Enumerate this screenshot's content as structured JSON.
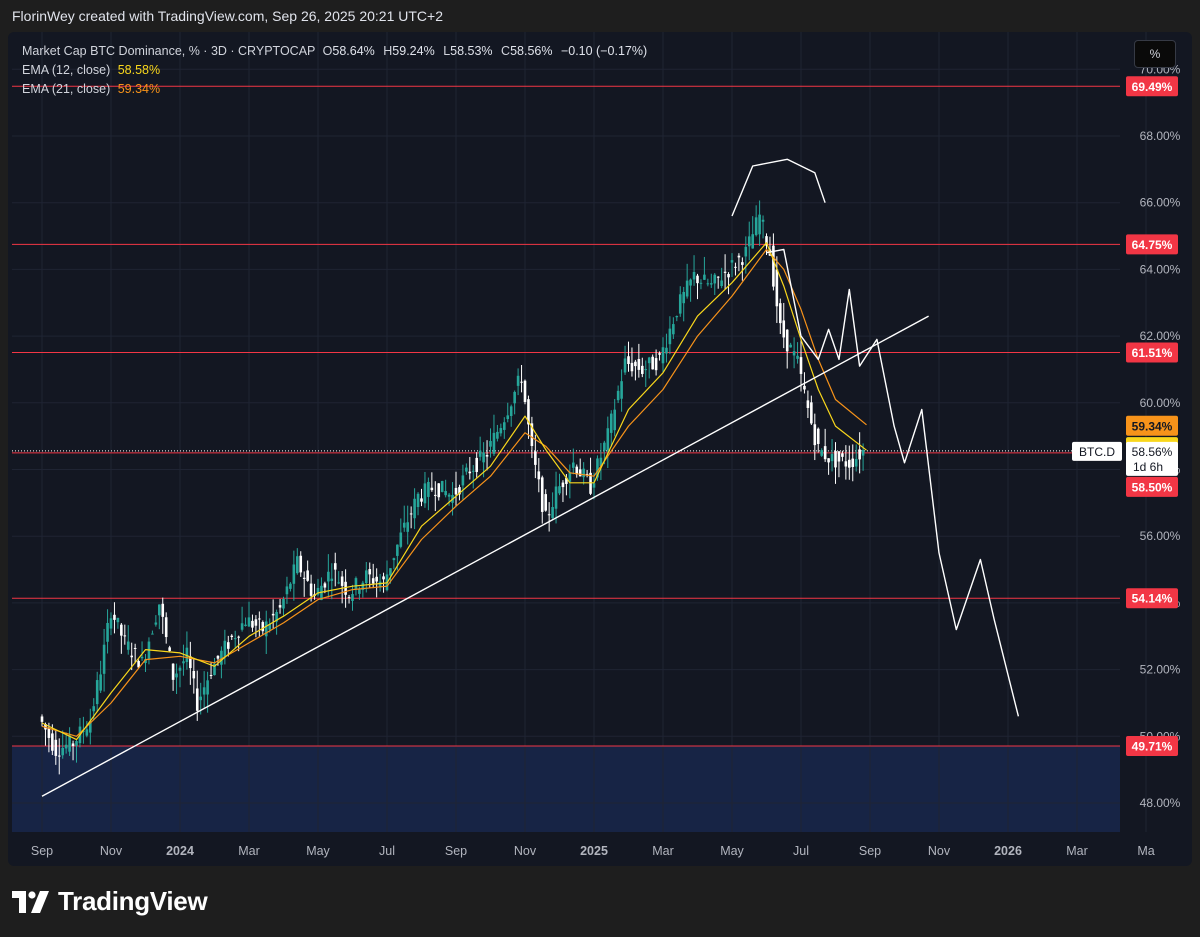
{
  "credit": "FlorinWey created with TradingView.com, Sep 26, 2025 20:21 UTC+2",
  "legend": {
    "symbol": "Market Cap BTC Dominance, % · 3D · CRYPTOCAP",
    "o_label": "O",
    "o_value": "58.64%",
    "h_label": "H",
    "h_value": "59.24%",
    "l_label": "L",
    "l_value": "58.53%",
    "c_label": "C",
    "c_value": "58.56%",
    "change": "−0.10 (−0.17%)",
    "ema12_label": "EMA (12, close)",
    "ema12_value": "58.58%",
    "ema21_label": "EMA (21, close)",
    "ema21_value": "59.34%"
  },
  "scale_button": "%",
  "logo_text": "TradingView",
  "colors": {
    "background": "#131722",
    "candle_up": "#26a69a",
    "candle_down": "#ffffff",
    "ema12": "#f9d71c",
    "ema21": "#f7931a",
    "level_line": "#f23645",
    "drawing": "#ffffff"
  },
  "chart_data": {
    "type": "candlestick",
    "timeframe": "3D",
    "x_ticks": [
      "Sep",
      "Nov",
      "2024",
      "Mar",
      "May",
      "Jul",
      "Sep",
      "Nov",
      "2025",
      "Mar",
      "May",
      "Jul",
      "Sep",
      "Nov",
      "2026",
      "Mar",
      "Ma"
    ],
    "y_ticks": [
      "48.00%",
      "50.00%",
      "52.00%",
      "54.00%",
      "56.00%",
      "58.00%",
      "60.00%",
      "62.00%",
      "64.00%",
      "66.00%",
      "68.00%",
      "70.00%"
    ],
    "ylim": [
      47.3,
      70.6
    ],
    "horizontal_levels": [
      69.49,
      64.75,
      61.51,
      58.5,
      54.14,
      49.71
    ],
    "level_labels": [
      "69.49%",
      "64.75%",
      "61.51%",
      "58.50%",
      "54.14%",
      "49.71%"
    ],
    "last_price": {
      "symbol": "BTC.D",
      "value": "58.56%",
      "countdown": "1d 6h"
    },
    "ema_labels": {
      "ema21": "59.34%",
      "ema12": "58.58%"
    },
    "price_path": [
      {
        "month": 0.0,
        "value": 50.6
      },
      {
        "month": 0.5,
        "value": 49.6
      },
      {
        "month": 1.0,
        "value": 49.8
      },
      {
        "month": 1.5,
        "value": 50.5
      },
      {
        "month": 1.8,
        "value": 52.0
      },
      {
        "month": 2.1,
        "value": 53.8
      },
      {
        "month": 2.5,
        "value": 52.8
      },
      {
        "month": 3.0,
        "value": 52.2
      },
      {
        "month": 3.5,
        "value": 54.0
      },
      {
        "month": 3.9,
        "value": 51.8
      },
      {
        "month": 4.3,
        "value": 52.4
      },
      {
        "month": 4.6,
        "value": 51.0
      },
      {
        "month": 5.0,
        "value": 52.0
      },
      {
        "month": 5.5,
        "value": 52.8
      },
      {
        "month": 6.0,
        "value": 53.5
      },
      {
        "month": 6.5,
        "value": 53.2
      },
      {
        "month": 7.0,
        "value": 53.8
      },
      {
        "month": 7.5,
        "value": 55.2
      },
      {
        "month": 8.0,
        "value": 54.2
      },
      {
        "month": 8.5,
        "value": 55.0
      },
      {
        "month": 9.0,
        "value": 54.3
      },
      {
        "month": 9.5,
        "value": 54.8
      },
      {
        "month": 10.0,
        "value": 54.6
      },
      {
        "month": 10.5,
        "value": 56.0
      },
      {
        "month": 11.0,
        "value": 57.2
      },
      {
        "month": 11.5,
        "value": 57.5
      },
      {
        "month": 12.0,
        "value": 57.2
      },
      {
        "month": 12.5,
        "value": 58.0
      },
      {
        "month": 13.0,
        "value": 58.5
      },
      {
        "month": 13.5,
        "value": 59.6
      },
      {
        "month": 14.0,
        "value": 60.8
      },
      {
        "month": 14.3,
        "value": 58.5
      },
      {
        "month": 14.7,
        "value": 56.5
      },
      {
        "month": 15.0,
        "value": 57.3
      },
      {
        "month": 15.5,
        "value": 58.2
      },
      {
        "month": 16.0,
        "value": 57.5
      },
      {
        "month": 16.5,
        "value": 59.0
      },
      {
        "month": 17.0,
        "value": 61.2
      },
      {
        "month": 17.5,
        "value": 61.0
      },
      {
        "month": 18.0,
        "value": 61.3
      },
      {
        "month": 18.5,
        "value": 62.8
      },
      {
        "month": 19.0,
        "value": 63.8
      },
      {
        "month": 19.5,
        "value": 63.5
      },
      {
        "month": 20.0,
        "value": 64.0
      },
      {
        "month": 20.5,
        "value": 64.5
      },
      {
        "month": 20.9,
        "value": 65.6
      },
      {
        "month": 21.2,
        "value": 64.5
      },
      {
        "month": 21.5,
        "value": 62.2
      },
      {
        "month": 22.0,
        "value": 61.2
      },
      {
        "month": 22.3,
        "value": 59.8
      },
      {
        "month": 22.6,
        "value": 58.6
      },
      {
        "month": 23.0,
        "value": 58.3
      },
      {
        "month": 23.5,
        "value": 58.2
      },
      {
        "month": 23.9,
        "value": 58.56
      }
    ],
    "ema12_path": [
      {
        "month": 0.0,
        "value": 50.4
      },
      {
        "month": 1.0,
        "value": 49.9
      },
      {
        "month": 2.0,
        "value": 51.3
      },
      {
        "month": 3.0,
        "value": 52.6
      },
      {
        "month": 4.0,
        "value": 52.5
      },
      {
        "month": 5.0,
        "value": 52.1
      },
      {
        "month": 6.0,
        "value": 53.0
      },
      {
        "month": 7.0,
        "value": 53.6
      },
      {
        "month": 8.0,
        "value": 54.3
      },
      {
        "month": 9.0,
        "value": 54.5
      },
      {
        "month": 10.0,
        "value": 54.6
      },
      {
        "month": 11.0,
        "value": 56.3
      },
      {
        "month": 12.0,
        "value": 57.2
      },
      {
        "month": 13.0,
        "value": 58.1
      },
      {
        "month": 14.0,
        "value": 59.6
      },
      {
        "month": 14.6,
        "value": 58.6
      },
      {
        "month": 15.3,
        "value": 57.6
      },
      {
        "month": 16.0,
        "value": 57.6
      },
      {
        "month": 17.0,
        "value": 59.8
      },
      {
        "month": 18.0,
        "value": 60.9
      },
      {
        "month": 19.0,
        "value": 62.6
      },
      {
        "month": 20.0,
        "value": 63.6
      },
      {
        "month": 21.0,
        "value": 64.8
      },
      {
        "month": 21.5,
        "value": 63.5
      },
      {
        "month": 22.0,
        "value": 61.9
      },
      {
        "month": 22.5,
        "value": 60.4
      },
      {
        "month": 23.0,
        "value": 59.3
      },
      {
        "month": 23.9,
        "value": 58.58
      }
    ],
    "ema21_path": [
      {
        "month": 0.0,
        "value": 50.3
      },
      {
        "month": 1.0,
        "value": 50.0
      },
      {
        "month": 2.0,
        "value": 51.0
      },
      {
        "month": 3.0,
        "value": 52.3
      },
      {
        "month": 4.0,
        "value": 52.4
      },
      {
        "month": 5.0,
        "value": 52.2
      },
      {
        "month": 6.0,
        "value": 52.8
      },
      {
        "month": 7.0,
        "value": 53.4
      },
      {
        "month": 8.0,
        "value": 54.1
      },
      {
        "month": 9.0,
        "value": 54.4
      },
      {
        "month": 10.0,
        "value": 54.5
      },
      {
        "month": 11.0,
        "value": 55.9
      },
      {
        "month": 12.0,
        "value": 56.9
      },
      {
        "month": 13.0,
        "value": 57.8
      },
      {
        "month": 14.0,
        "value": 59.1
      },
      {
        "month": 14.6,
        "value": 58.7
      },
      {
        "month": 15.3,
        "value": 57.9
      },
      {
        "month": 16.0,
        "value": 57.8
      },
      {
        "month": 17.0,
        "value": 59.3
      },
      {
        "month": 18.0,
        "value": 60.4
      },
      {
        "month": 19.0,
        "value": 62.0
      },
      {
        "month": 20.0,
        "value": 63.2
      },
      {
        "month": 21.0,
        "value": 64.6
      },
      {
        "month": 21.5,
        "value": 64.0
      },
      {
        "month": 22.0,
        "value": 62.8
      },
      {
        "month": 22.5,
        "value": 61.3
      },
      {
        "month": 23.0,
        "value": 60.1
      },
      {
        "month": 23.9,
        "value": 59.34
      }
    ],
    "trendline": [
      {
        "month": 0.0,
        "value": 48.2
      },
      {
        "month": 25.7,
        "value": 62.6
      }
    ],
    "projection_path": [
      {
        "month": 21.0,
        "value": 64.5
      },
      {
        "month": 21.5,
        "value": 64.6
      },
      {
        "month": 22.0,
        "value": 62.0
      },
      {
        "month": 22.5,
        "value": 61.3
      },
      {
        "month": 22.8,
        "value": 62.2
      },
      {
        "month": 23.1,
        "value": 61.3
      },
      {
        "month": 23.4,
        "value": 63.4
      },
      {
        "month": 23.7,
        "value": 61.1
      },
      {
        "month": 24.2,
        "value": 61.9
      },
      {
        "month": 24.7,
        "value": 59.3
      },
      {
        "month": 25.0,
        "value": 58.2
      },
      {
        "month": 25.5,
        "value": 59.8
      },
      {
        "month": 26.0,
        "value": 55.5
      },
      {
        "month": 26.5,
        "value": 53.2
      },
      {
        "month": 27.2,
        "value": 55.3
      },
      {
        "month": 27.6,
        "value": 53.5
      },
      {
        "month": 28.3,
        "value": 50.6
      }
    ],
    "arc_path": [
      {
        "month": 20.0,
        "value": 65.6
      },
      {
        "month": 20.6,
        "value": 67.1
      },
      {
        "month": 21.6,
        "value": 67.3
      },
      {
        "month": 22.4,
        "value": 66.9
      },
      {
        "month": 22.7,
        "value": 66.0
      }
    ],
    "shaded_zone": [
      47.3,
      49.71
    ]
  }
}
